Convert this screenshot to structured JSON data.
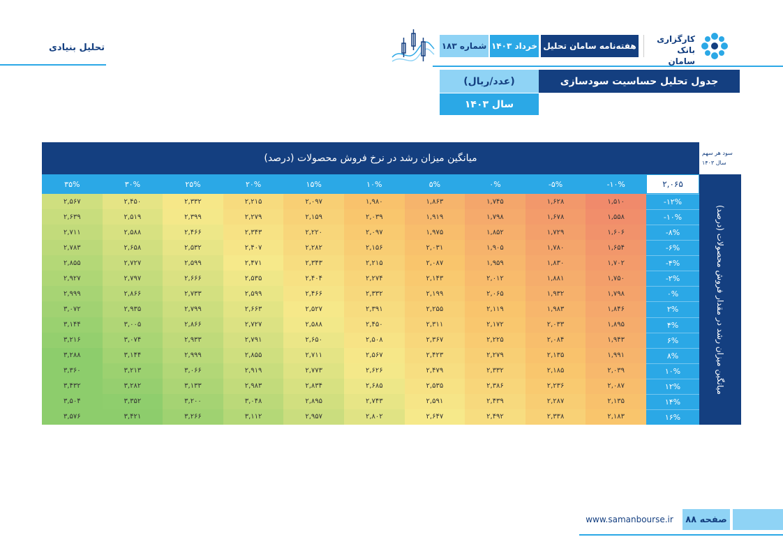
{
  "header": {
    "section": "تحلیل بنیادی",
    "brand": [
      "کارگزاری",
      "بانک سامان"
    ],
    "publication": "هفته‌نامه سامان تحلیل",
    "date": "خرداد ۱۴۰۳",
    "issue": "شماره ۱۸۳"
  },
  "title": {
    "text": "جدول تحلیل حساسیت سودسازی",
    "unit": "(عدد/ریال)",
    "year": "سال ۱۴۰۳"
  },
  "table": {
    "corner": [
      "سود هر سهم",
      "سال ۱۴۰۳"
    ],
    "column_title": "میانگین میزان رشد در نرخ فروش محصولات (درصد)",
    "row_title": "میانگین میزان رشد در مقدار فروش محصولات (درصد)",
    "base": "۲,۰۶۵",
    "columns": [
      "-۱۰%",
      "-۵%",
      "۰%",
      "۵%",
      "۱۰%",
      "۱۵%",
      "۲۰%",
      "۲۵%",
      "۳۰%",
      "۳۵%"
    ],
    "rows": [
      {
        "label": "-۱۲%",
        "values": [
          "۱,۵۱۰",
          "۱,۶۲۸",
          "۱,۷۴۵",
          "۱,۸۶۳",
          "۱,۹۸۰",
          "۲,۰۹۷",
          "۲,۲۱۵",
          "۲,۳۳۲",
          "۲,۴۵۰",
          "۲,۵۶۷"
        ]
      },
      {
        "label": "-۱۰%",
        "values": [
          "۱,۵۵۸",
          "۱,۶۷۸",
          "۱,۷۹۸",
          "۱,۹۱۹",
          "۲,۰۳۹",
          "۲,۱۵۹",
          "۲,۲۷۹",
          "۲,۳۹۹",
          "۲,۵۱۹",
          "۲,۶۳۹"
        ]
      },
      {
        "label": "-۸%",
        "values": [
          "۱,۶۰۶",
          "۱,۷۲۹",
          "۱,۸۵۲",
          "۱,۹۷۵",
          "۲,۰۹۷",
          "۲,۲۲۰",
          "۲,۳۴۳",
          "۲,۴۶۶",
          "۲,۵۸۸",
          "۲,۷۱۱"
        ]
      },
      {
        "label": "-۶%",
        "values": [
          "۱,۶۵۴",
          "۱,۷۸۰",
          "۱,۹۰۵",
          "۲,۰۳۱",
          "۲,۱۵۶",
          "۲,۲۸۲",
          "۲,۴۰۷",
          "۲,۵۳۲",
          "۲,۶۵۸",
          "۲,۷۸۳"
        ]
      },
      {
        "label": "-۴%",
        "values": [
          "۱,۷۰۲",
          "۱,۸۳۰",
          "۱,۹۵۹",
          "۲,۰۸۷",
          "۲,۲۱۵",
          "۲,۳۴۳",
          "۲,۴۷۱",
          "۲,۵۹۹",
          "۲,۷۲۷",
          "۲,۸۵۵"
        ]
      },
      {
        "label": "-۲%",
        "values": [
          "۱,۷۵۰",
          "۱,۸۸۱",
          "۲,۰۱۲",
          "۲,۱۴۳",
          "۲,۲۷۴",
          "۲,۴۰۴",
          "۲,۵۳۵",
          "۲,۶۶۶",
          "۲,۷۹۷",
          "۲,۹۲۷"
        ]
      },
      {
        "label": "۰%",
        "values": [
          "۱,۷۹۸",
          "۱,۹۳۲",
          "۲,۰۶۵",
          "۲,۱۹۹",
          "۲,۳۳۲",
          "۲,۴۶۶",
          "۲,۵۹۹",
          "۲,۷۳۳",
          "۲,۸۶۶",
          "۲,۹۹۹"
        ]
      },
      {
        "label": "۲%",
        "values": [
          "۱,۸۴۶",
          "۱,۹۸۳",
          "۲,۱۱۹",
          "۲,۲۵۵",
          "۲,۳۹۱",
          "۲,۵۲۷",
          "۲,۶۶۳",
          "۲,۷۹۹",
          "۲,۹۳۵",
          "۳,۰۷۲"
        ]
      },
      {
        "label": "۴%",
        "values": [
          "۱,۸۹۵",
          "۲,۰۳۳",
          "۲,۱۷۲",
          "۲,۳۱۱",
          "۲,۴۵۰",
          "۲,۵۸۸",
          "۲,۷۲۷",
          "۲,۸۶۶",
          "۳,۰۰۵",
          "۳,۱۴۴"
        ]
      },
      {
        "label": "۶%",
        "values": [
          "۱,۹۴۳",
          "۲,۰۸۴",
          "۲,۲۲۵",
          "۲,۳۶۷",
          "۲,۵۰۸",
          "۲,۶۵۰",
          "۲,۷۹۱",
          "۲,۹۳۳",
          "۳,۰۷۴",
          "۳,۲۱۶"
        ]
      },
      {
        "label": "۸%",
        "values": [
          "۱,۹۹۱",
          "۲,۱۳۵",
          "۲,۲۷۹",
          "۲,۴۲۳",
          "۲,۵۶۷",
          "۲,۷۱۱",
          "۲,۸۵۵",
          "۲,۹۹۹",
          "۳,۱۴۴",
          "۳,۲۸۸"
        ]
      },
      {
        "label": "۱۰%",
        "values": [
          "۲,۰۳۹",
          "۲,۱۸۵",
          "۲,۳۳۲",
          "۲,۴۷۹",
          "۲,۶۲۶",
          "۲,۷۷۳",
          "۲,۹۱۹",
          "۳,۰۶۶",
          "۳,۲۱۳",
          "۳,۳۶۰"
        ]
      },
      {
        "label": "۱۲%",
        "values": [
          "۲,۰۸۷",
          "۲,۲۳۶",
          "۲,۳۸۶",
          "۲,۵۳۵",
          "۲,۶۸۵",
          "۲,۸۳۴",
          "۲,۹۸۳",
          "۳,۱۳۳",
          "۳,۲۸۲",
          "۳,۴۳۲"
        ]
      },
      {
        "label": "۱۴%",
        "values": [
          "۲,۱۳۵",
          "۲,۲۸۷",
          "۲,۴۳۹",
          "۲,۵۹۱",
          "۲,۷۴۳",
          "۲,۸۹۵",
          "۳,۰۴۸",
          "۳,۲۰۰",
          "۳,۳۵۲",
          "۳,۵۰۴"
        ]
      },
      {
        "label": "۱۶%",
        "values": [
          "۲,۱۸۳",
          "۲,۳۳۸",
          "۲,۴۹۲",
          "۲,۶۴۷",
          "۲,۸۰۲",
          "۲,۹۵۷",
          "۳,۱۱۲",
          "۳,۲۶۶",
          "۳,۴۲۱",
          "۳,۵۷۶"
        ]
      }
    ]
  },
  "footer": {
    "url": "www.samanbourse.ir",
    "page": "صفحه ۸۸"
  }
}
